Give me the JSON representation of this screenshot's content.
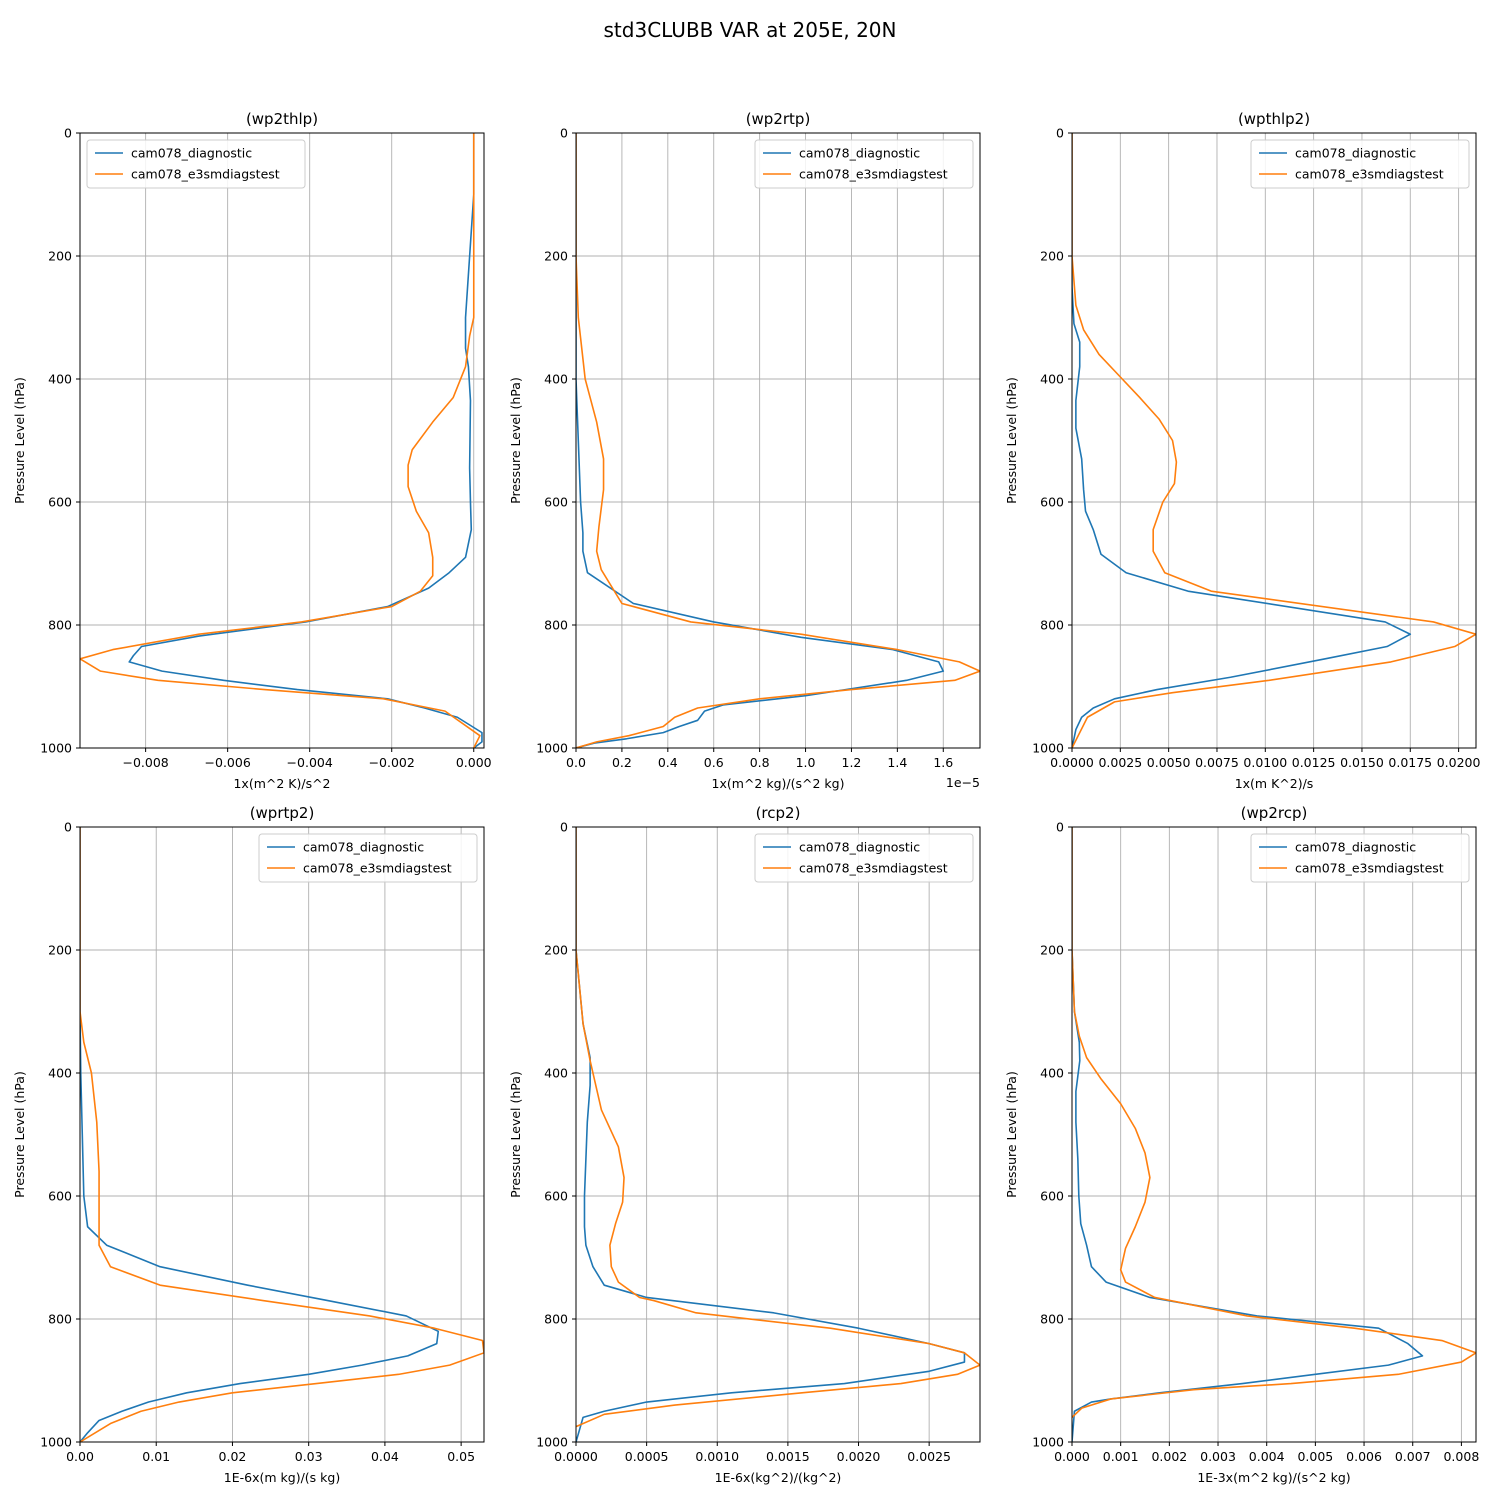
{
  "figure_title": "std3CLUBB VAR at 205E, 20N",
  "colors": {
    "series_0": "#1f77b4",
    "series_1": "#ff7f0e",
    "grid": "#b0b0b0"
  },
  "chart_data": [
    {
      "type": "line",
      "title": "(wp2thlp)",
      "xlabel": "1x(m^2 K)/s^2",
      "ylabel": "Pressure Level (hPa)",
      "xlim": [
        -0.0096,
        0.00025
      ],
      "ylim": [
        1000,
        0
      ],
      "xticks": [
        -0.008,
        -0.006,
        -0.004,
        -0.002,
        0.0
      ],
      "xtick_labels": [
        "−0.008",
        "−0.006",
        "−0.004",
        "−0.002",
        "0.000"
      ],
      "yticks": [
        0,
        200,
        400,
        600,
        800,
        1000
      ],
      "xoffset_label": "",
      "legend_loc": "upper left",
      "grid": true,
      "series": [
        {
          "name": "cam078_diagnostic",
          "x": [
            0.0,
            0.0,
            -0.0001,
            -0.0002,
            -0.0002,
            -0.00013,
            -8e-05,
            -9e-05,
            -0.0001,
            -8e-05,
            -6e-05,
            -0.0002,
            -0.0006,
            -0.0011,
            -0.0021,
            -0.0041,
            -0.0067,
            -0.0081,
            -0.0083,
            -0.0084,
            -0.0076,
            -0.0061,
            -0.0043,
            -0.0021,
            -0.0012,
            -0.0004,
            0.0002,
            0.0002,
            0.0
          ],
          "y": [
            0,
            100,
            200,
            300,
            350,
            380,
            435,
            490,
            545,
            600,
            645,
            690,
            715,
            740,
            770,
            795,
            818,
            835,
            850,
            860,
            875,
            890,
            905,
            920,
            935,
            950,
            975,
            990,
            1000
          ]
        },
        {
          "name": "cam078_e3smdiagstest",
          "x": [
            0.0,
            0.0,
            0.0,
            0.0,
            -0.0001,
            -0.0002,
            -0.0005,
            -0.001,
            -0.0015,
            -0.0016,
            -0.0016,
            -0.0014,
            -0.0011,
            -0.001,
            -0.001,
            -0.0013,
            -0.002,
            -0.0042,
            -0.0067,
            -0.0088,
            -0.0096,
            -0.0091,
            -0.0077,
            -0.0051,
            -0.0022,
            -0.0007,
            0.00015,
            0.0
          ],
          "y": [
            0,
            100,
            200,
            300,
            330,
            380,
            430,
            470,
            515,
            540,
            575,
            615,
            650,
            690,
            720,
            745,
            770,
            795,
            815,
            840,
            855,
            875,
            890,
            905,
            920,
            940,
            980,
            1000
          ]
        }
      ]
    },
    {
      "type": "line",
      "title": "(wp2rtp)",
      "xlabel": "1x(m^2 kg)/(s^2 kg)",
      "ylabel": "Pressure Level (hPa)",
      "xlim": [
        0,
        1.76e-05
      ],
      "ylim": [
        1000,
        0
      ],
      "xticks": [
        0,
        2e-06,
        4e-06,
        6e-06,
        8e-06,
        1e-05,
        1.2e-05,
        1.4e-05,
        1.6e-05
      ],
      "xtick_labels": [
        "0.0",
        "0.2",
        "0.4",
        "0.6",
        "0.8",
        "1.0",
        "1.2",
        "1.4",
        "1.6"
      ],
      "yticks": [
        0,
        200,
        400,
        600,
        800,
        1000
      ],
      "xoffset_label": "1e−5",
      "legend_loc": "upper right",
      "grid": true,
      "series": [
        {
          "name": "cam078_diagnostic",
          "x": [
            0,
            0,
            0,
            0,
            1e-07,
            2e-07,
            3e-07,
            3e-07,
            5e-07,
            2.5e-06,
            6e-06,
            9.8e-06,
            1.38e-05,
            1.58e-05,
            1.6e-05,
            1.44e-05,
            1e-05,
            6.4e-06,
            5.6e-06,
            5.3e-06,
            4.5e-06,
            3.8e-06,
            2.2e-06,
            8e-07,
            0
          ],
          "y": [
            0,
            200,
            300,
            400,
            500,
            600,
            650,
            680,
            715,
            765,
            795,
            820,
            840,
            860,
            875,
            890,
            915,
            930,
            940,
            955,
            965,
            975,
            985,
            992,
            1000
          ]
        },
        {
          "name": "cam078_e3smdiagstest",
          "x": [
            0,
            0,
            1e-07,
            4e-07,
            9e-07,
            1.2e-06,
            1.2e-06,
            1e-06,
            9e-07,
            1.1e-06,
            2e-06,
            5e-06,
            9.8e-06,
            1.4e-05,
            1.67e-05,
            1.76e-05,
            1.65e-05,
            1.2e-05,
            8e-06,
            5.3e-06,
            4.3e-06,
            3.8e-06,
            2.3e-06,
            9e-07,
            0
          ],
          "y": [
            0,
            200,
            300,
            400,
            470,
            530,
            580,
            640,
            680,
            710,
            765,
            795,
            815,
            840,
            860,
            875,
            890,
            905,
            920,
            935,
            950,
            965,
            980,
            990,
            1000
          ]
        }
      ]
    },
    {
      "type": "line",
      "title": "(wpthlp2)",
      "xlabel": "1x(m K^2)/s",
      "ylabel": "Pressure Level (hPa)",
      "xlim": [
        0,
        0.0209
      ],
      "ylim": [
        1000,
        0
      ],
      "xticks": [
        0,
        0.0025,
        0.005,
        0.0075,
        0.01,
        0.0125,
        0.015,
        0.0175,
        0.02
      ],
      "xtick_labels": [
        "0.0000",
        "0.0025",
        "0.0050",
        "0.0075",
        "0.0100",
        "0.0125",
        "0.0150",
        "0.0175",
        "0.0200"
      ],
      "yticks": [
        0,
        200,
        400,
        600,
        800,
        1000
      ],
      "xoffset_label": "",
      "legend_loc": "upper right",
      "grid": true,
      "series": [
        {
          "name": "cam078_diagnostic",
          "x": [
            0,
            0,
            0,
            0.0001,
            0.0004,
            0.0004,
            0.0002,
            0.0002,
            0.0005,
            0.0006,
            0.0007,
            0.0011,
            0.0015,
            0.0028,
            0.006,
            0.0162,
            0.0175,
            0.0163,
            0.0131,
            0.0082,
            0.0044,
            0.0022,
            0.0011,
            0.0005,
            0.0002,
            0
          ],
          "y": [
            0,
            200,
            250,
            310,
            340,
            380,
            435,
            480,
            530,
            580,
            615,
            645,
            685,
            715,
            745,
            795,
            815,
            835,
            855,
            885,
            905,
            920,
            935,
            950,
            970,
            1000
          ]
        },
        {
          "name": "cam078_e3smdiagstest",
          "x": [
            0,
            0,
            0.0002,
            0.0006,
            0.0014,
            0.0026,
            0.0035,
            0.0045,
            0.0052,
            0.0054,
            0.0053,
            0.0047,
            0.0042,
            0.0042,
            0.0048,
            0.0072,
            0.0187,
            0.0209,
            0.0198,
            0.0165,
            0.0102,
            0.0052,
            0.0022,
            0.0008,
            0
          ],
          "y": [
            0,
            200,
            280,
            320,
            360,
            400,
            430,
            465,
            500,
            535,
            570,
            600,
            645,
            680,
            715,
            745,
            795,
            815,
            835,
            860,
            890,
            910,
            925,
            950,
            1000
          ]
        }
      ]
    },
    {
      "type": "line",
      "title": "(wprtp2)",
      "xlabel": "1E-6x(m kg)/(s kg)",
      "ylabel": "Pressure Level (hPa)",
      "xlim": [
        0,
        0.053
      ],
      "ylim": [
        1000,
        0
      ],
      "xticks": [
        0,
        0.01,
        0.02,
        0.03,
        0.04,
        0.05
      ],
      "xtick_labels": [
        "0.00",
        "0.01",
        "0.02",
        "0.03",
        "0.04",
        "0.05"
      ],
      "yticks": [
        0,
        200,
        400,
        600,
        800,
        1000
      ],
      "xoffset_label": "",
      "legend_loc": "upper right",
      "grid": true,
      "series": [
        {
          "name": "cam078_diagnostic",
          "x": [
            0,
            0,
            0.0001,
            0.0003,
            0.0005,
            0.001,
            0.0035,
            0.0105,
            0.022,
            0.0325,
            0.0428,
            0.047,
            0.0468,
            0.043,
            0.037,
            0.03,
            0.021,
            0.014,
            0.009,
            0.0055,
            0.0025,
            0.001,
            0
          ],
          "y": [
            0,
            300,
            400,
            500,
            600,
            650,
            680,
            715,
            745,
            770,
            795,
            820,
            840,
            860,
            875,
            890,
            905,
            920,
            935,
            950,
            965,
            985,
            1000
          ]
        },
        {
          "name": "cam078_e3smdiagstest",
          "x": [
            0,
            0,
            0.0005,
            0.0015,
            0.0022,
            0.0025,
            0.0025,
            0.0025,
            0.004,
            0.0105,
            0.024,
            0.038,
            0.0465,
            0.0528,
            0.053,
            0.0485,
            0.0418,
            0.031,
            0.02,
            0.013,
            0.008,
            0.004,
            0
          ],
          "y": [
            0,
            300,
            350,
            400,
            480,
            560,
            640,
            680,
            715,
            745,
            770,
            795,
            815,
            835,
            855,
            875,
            890,
            905,
            920,
            935,
            950,
            970,
            1000
          ]
        }
      ]
    },
    {
      "type": "line",
      "title": "(rcp2)",
      "xlabel": "1E-6x(kg^2)/(kg^2)",
      "ylabel": "Pressure Level (hPa)",
      "xlim": [
        0,
        0.00286
      ],
      "ylim": [
        1000,
        0
      ],
      "xticks": [
        0,
        0.0005,
        0.001,
        0.0015,
        0.002,
        0.0025
      ],
      "xtick_labels": [
        "0.0000",
        "0.0005",
        "0.0010",
        "0.0015",
        "0.0020",
        "0.0025"
      ],
      "yticks": [
        0,
        200,
        400,
        600,
        800,
        1000
      ],
      "xoffset_label": "",
      "legend_loc": "upper right",
      "grid": true,
      "series": [
        {
          "name": "cam078_diagnostic",
          "x": [
            0,
            0,
            5e-05,
            0.0001,
            0.0001,
            8e-05,
            7e-05,
            6e-05,
            6e-05,
            7e-05,
            0.00012,
            0.0002,
            0.0005,
            0.0014,
            0.002,
            0.0025,
            0.00275,
            0.00275,
            0.0025,
            0.0019,
            0.0011,
            0.0005,
            0.0002,
            5e-05,
            0
          ],
          "y": [
            0,
            200,
            320,
            375,
            420,
            480,
            540,
            600,
            650,
            680,
            715,
            745,
            765,
            790,
            815,
            840,
            855,
            870,
            885,
            905,
            920,
            935,
            950,
            960,
            1000
          ]
        },
        {
          "name": "cam078_e3smdiagstest",
          "x": [
            0,
            0,
            5e-05,
            0.0001,
            0.00018,
            0.0003,
            0.00034,
            0.00033,
            0.00028,
            0.00024,
            0.00025,
            0.0003,
            0.00045,
            0.00055,
            0.00085,
            0.0018,
            0.0025,
            0.00275,
            0.00286,
            0.0027,
            0.0023,
            0.0016,
            0.0007,
            0.0002,
            0
          ],
          "y": [
            0,
            200,
            320,
            380,
            460,
            520,
            570,
            610,
            645,
            680,
            715,
            740,
            765,
            770,
            790,
            815,
            840,
            855,
            875,
            890,
            905,
            920,
            940,
            955,
            975
          ]
        }
      ]
    },
    {
      "type": "line",
      "title": "(wp2rcp)",
      "xlabel": "1E-3x(m^2 kg)/(s^2 kg)",
      "ylabel": "Pressure Level (hPa)",
      "xlim": [
        0,
        0.0083
      ],
      "ylim": [
        1000,
        0
      ],
      "xticks": [
        0,
        0.001,
        0.002,
        0.003,
        0.004,
        0.005,
        0.006,
        0.007,
        0.008
      ],
      "xtick_labels": [
        "0.000",
        "0.001",
        "0.002",
        "0.003",
        "0.004",
        "0.005",
        "0.006",
        "0.007",
        "0.008"
      ],
      "yticks": [
        0,
        200,
        400,
        600,
        800,
        1000
      ],
      "xoffset_label": "",
      "legend_loc": "upper right",
      "grid": true,
      "series": [
        {
          "name": "cam078_diagnostic",
          "x": [
            0,
            0,
            5e-05,
            0.00015,
            0.00016,
            8e-05,
            8e-05,
            0.00012,
            0.00014,
            0.00018,
            0.0003,
            0.0004,
            0.0007,
            0.0016,
            0.0038,
            0.0063,
            0.0069,
            0.0072,
            0.0065,
            0.005,
            0.0035,
            0.0018,
            0.0008,
            0.0004,
            5e-05,
            0
          ],
          "y": [
            0,
            200,
            300,
            350,
            380,
            430,
            480,
            540,
            600,
            645,
            680,
            715,
            740,
            765,
            795,
            815,
            840,
            860,
            875,
            890,
            905,
            920,
            930,
            935,
            950,
            1000
          ]
        },
        {
          "name": "cam078_e3smdiagstest",
          "x": [
            0,
            0,
            5e-05,
            0.00015,
            0.0003,
            0.0006,
            0.001,
            0.0013,
            0.0015,
            0.0016,
            0.0015,
            0.0013,
            0.0011,
            0.001,
            0.0011,
            0.0017,
            0.0036,
            0.0058,
            0.0076,
            0.0083,
            0.008,
            0.0067,
            0.0045,
            0.0025,
            0.0008,
            0.0002,
            0
          ],
          "y": [
            0,
            200,
            300,
            340,
            375,
            410,
            450,
            490,
            530,
            570,
            610,
            650,
            685,
            720,
            740,
            765,
            795,
            815,
            835,
            855,
            870,
            890,
            905,
            915,
            930,
            945,
            960
          ]
        }
      ]
    }
  ]
}
